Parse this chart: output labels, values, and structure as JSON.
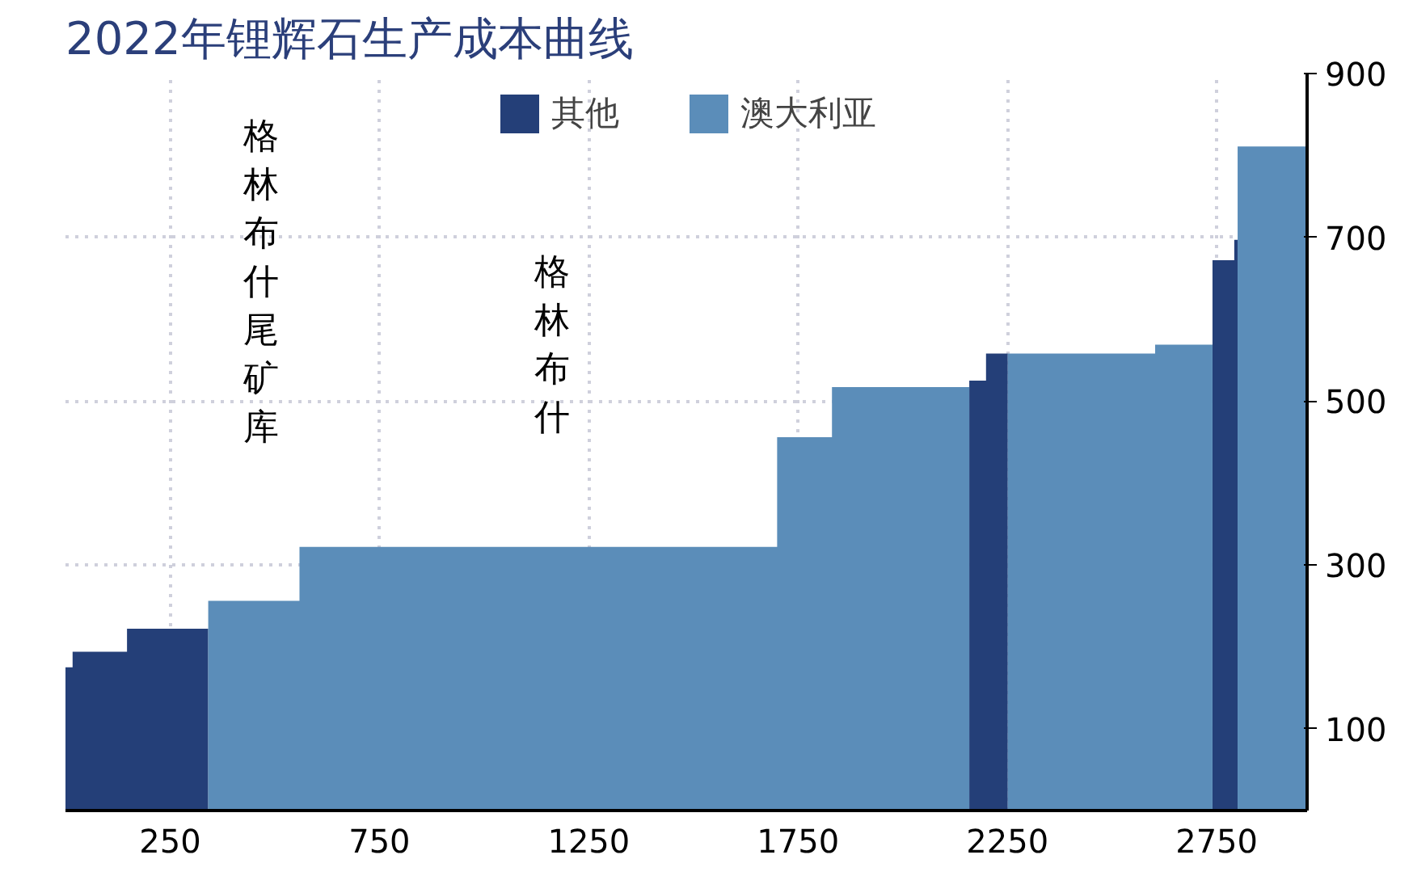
{
  "chart_data": {
    "type": "area",
    "title": "2022年锂辉石生产成本曲线",
    "xlim": [
      0,
      2966
    ],
    "xticks": [
      250,
      750,
      1250,
      1750,
      2250,
      2750
    ],
    "ylim": [
      0,
      900
    ],
    "yticks": [
      100,
      300,
      500,
      700,
      900
    ],
    "grid": true,
    "legend": "top",
    "series": [
      {
        "name": "其他",
        "color": "#243f78",
        "x": [
          0,
          17,
          17,
          147,
          147,
          341,
          null,
          2159,
          2199,
          2199,
          2251,
          null,
          2740,
          2792,
          2792,
          2800
        ],
        "values": [
          175,
          175,
          194,
          194,
          222,
          222,
          null,
          525,
          525,
          558,
          558,
          null,
          672,
          672,
          697,
          697
        ]
      },
      {
        "name": "澳大利亚",
        "color": "#5b8db9",
        "x": [
          341,
          559,
          559,
          1700,
          1700,
          1831,
          1831,
          2159,
          null,
          2251,
          2603,
          2603,
          2740,
          null,
          2800,
          2966
        ],
        "values": [
          256,
          256,
          322,
          322,
          456,
          456,
          517,
          517,
          null,
          558,
          558,
          569,
          569,
          null,
          811,
          811
        ]
      }
    ],
    "annotations": [
      "格林布什尾矿库",
      "格林布什"
    ]
  }
}
